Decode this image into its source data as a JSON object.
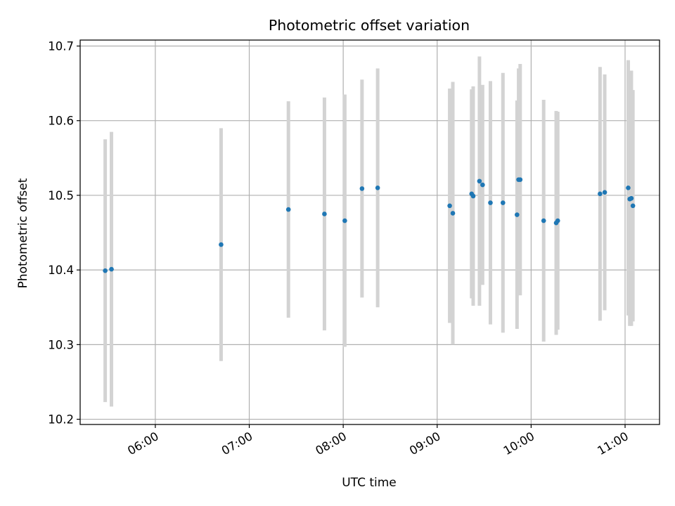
{
  "chart_data": {
    "type": "scatter",
    "title": "Photometric offset variation",
    "xlabel": "UTC time",
    "ylabel": "Photometric offset",
    "x_axis": "time",
    "xlim": [
      "05:12",
      "11:22"
    ],
    "ylim": [
      10.193,
      10.708
    ],
    "xticks": [
      "06:00",
      "07:00",
      "08:00",
      "09:00",
      "10:00",
      "11:00"
    ],
    "yticks": [
      "10.2",
      "10.3",
      "10.4",
      "10.5",
      "10.6",
      "10.7"
    ],
    "grid": true,
    "marker_color": "#1f77b4",
    "errorbar_color": "#d3d3d3",
    "points": [
      {
        "x": "05:28",
        "y": 10.399,
        "err": 0.176
      },
      {
        "x": "05:32",
        "y": 10.401,
        "err": 0.184
      },
      {
        "x": "06:42",
        "y": 10.434,
        "err": 0.156
      },
      {
        "x": "07:25",
        "y": 10.481,
        "err": 0.145
      },
      {
        "x": "07:48",
        "y": 10.475,
        "err": 0.156
      },
      {
        "x": "08:01",
        "y": 10.466,
        "err": 0.169
      },
      {
        "x": "08:12",
        "y": 10.509,
        "err": 0.146
      },
      {
        "x": "08:22",
        "y": 10.51,
        "err": 0.16
      },
      {
        "x": "09:08",
        "y": 10.486,
        "err": 0.157
      },
      {
        "x": "09:10",
        "y": 10.476,
        "err": 0.176
      },
      {
        "x": "09:22",
        "y": 10.502,
        "err": 0.14
      },
      {
        "x": "09:23",
        "y": 10.499,
        "err": 0.147
      },
      {
        "x": "09:27",
        "y": 10.519,
        "err": 0.167
      },
      {
        "x": "09:29",
        "y": 10.514,
        "err": 0.134
      },
      {
        "x": "09:34",
        "y": 10.49,
        "err": 0.163
      },
      {
        "x": "09:42",
        "y": 10.49,
        "err": 0.174
      },
      {
        "x": "09:51",
        "y": 10.474,
        "err": 0.153
      },
      {
        "x": "09:52",
        "y": 10.521,
        "err": 0.149
      },
      {
        "x": "09:53",
        "y": 10.521,
        "err": 0.155
      },
      {
        "x": "10:08",
        "y": 10.466,
        "err": 0.162
      },
      {
        "x": "10:16",
        "y": 10.463,
        "err": 0.15
      },
      {
        "x": "10:17",
        "y": 10.466,
        "err": 0.146
      },
      {
        "x": "10:44",
        "y": 10.502,
        "err": 0.17
      },
      {
        "x": "10:47",
        "y": 10.504,
        "err": 0.158
      },
      {
        "x": "11:02",
        "y": 10.51,
        "err": 0.171
      },
      {
        "x": "11:03",
        "y": 10.495,
        "err": 0.17
      },
      {
        "x": "11:04",
        "y": 10.496,
        "err": 0.171
      },
      {
        "x": "11:05",
        "y": 10.486,
        "err": 0.155
      }
    ]
  }
}
